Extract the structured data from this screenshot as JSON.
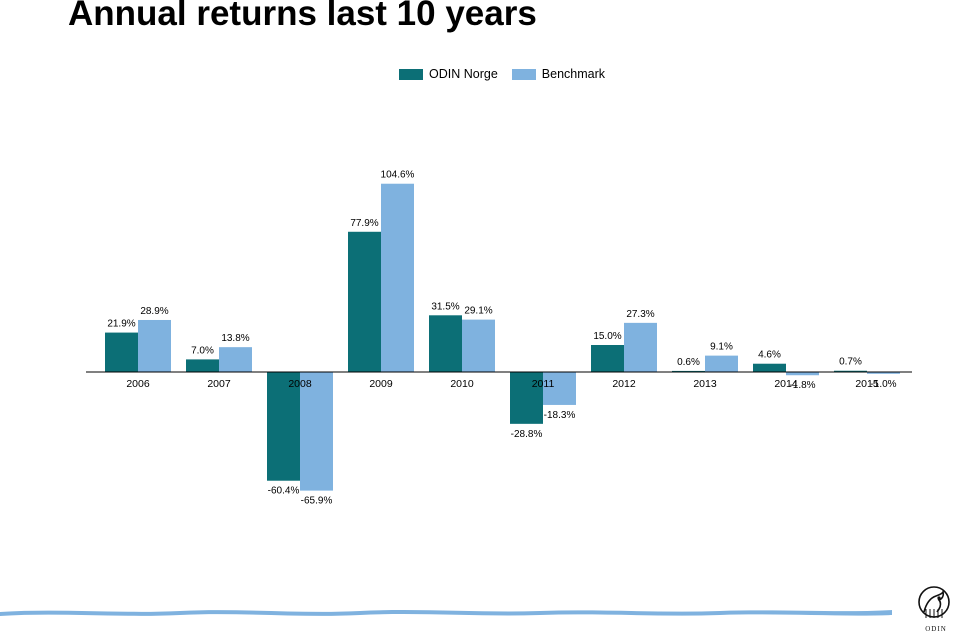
{
  "title": "Annual returns last 10 years",
  "colors": {
    "primary": "#0c6f76",
    "secondary": "#7fb2df",
    "footer": "#7fb2df"
  },
  "logo": {
    "text": "ODIN"
  },
  "chart_data": {
    "type": "bar",
    "title": "Annual returns last 10 years",
    "categories": [
      "2006",
      "2007",
      "2008",
      "2009",
      "2010",
      "2011",
      "2012",
      "2013",
      "2014",
      "2015"
    ],
    "series": [
      {
        "name": "ODIN Norge",
        "color": "#0c6f76",
        "values": [
          21.9,
          7.0,
          -60.4,
          77.9,
          31.5,
          -28.8,
          15.0,
          0.6,
          4.6,
          0.7
        ]
      },
      {
        "name": "Benchmark",
        "color": "#7fb2df",
        "values": [
          28.9,
          13.8,
          -65.9,
          104.6,
          29.1,
          -18.3,
          27.3,
          9.1,
          -1.8,
          -1.0
        ]
      }
    ],
    "data_labels": {
      "ODIN Norge": [
        "21.9%",
        "7.0%",
        "-60.4%",
        "77.9%",
        "31.5%",
        "-28.8%",
        "15.0%",
        "0.6%",
        "4.6%",
        "0.7%"
      ],
      "Benchmark": [
        "28.9%",
        "13.8%",
        "-65.9%",
        "104.6%",
        "29.1%",
        "-18.3%",
        "27.3%",
        "9.1%",
        "-1.8%",
        "-1.0%"
      ]
    },
    "ylim": [
      -80,
      110
    ],
    "grid": false,
    "legend_position": "top-center",
    "xlabel": "",
    "ylabel": ""
  }
}
